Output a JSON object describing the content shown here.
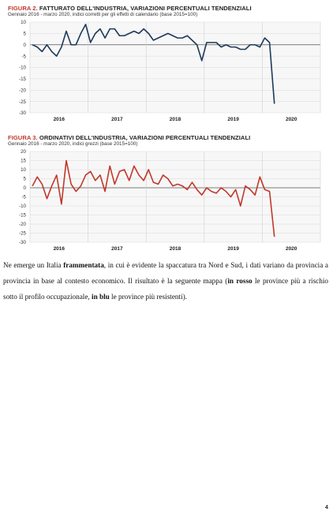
{
  "charts": {
    "c1": {
      "title_num": "FIGURA 2.",
      "title_text": "FATTURATO DELL'INDUSTRIA, VARIAZIONI PERCENTUALI TENDENZIALI",
      "subtitle": "Gennaio 2016 - marzo 2020, indici corretti per gli effetti di calendario (base 2015=100)"
    },
    "c2": {
      "title_num": "FIGURA 3.",
      "title_text": "ORDINATIVI DELL'INDUSTRIA, VARIAZIONI PERCENTUALI TENDENZIALI",
      "subtitle": "Gennaio 2016 - marzo 2020, indici grezzi (base 2015=100)"
    }
  },
  "chart_data": [
    {
      "type": "line",
      "title": "FIGURA 2. FATTURATO DELL'INDUSTRIA, VARIAZIONI PERCENTUALI TENDENZIALI",
      "subtitle": "Gennaio 2016 - marzo 2020, indici corretti per gli effetti di calendario (base 2015=100)",
      "ylim": [
        -30,
        10
      ],
      "yticks": [
        10,
        5,
        0,
        -5,
        -10,
        -15,
        -20,
        -25,
        -30
      ],
      "year_labels": [
        "2016",
        "2017",
        "2018",
        "2019",
        "2020"
      ],
      "grid": true,
      "color": "#1f3a5a",
      "series": [
        {
          "values": [
            0,
            -1,
            -3,
            0,
            -3,
            -5,
            -1,
            6,
            0,
            0,
            5,
            9,
            1,
            5,
            7,
            3,
            7,
            7,
            4,
            4,
            5,
            6,
            5,
            7,
            5,
            2,
            3,
            4,
            5,
            4,
            3,
            3,
            4,
            2,
            0,
            -7,
            1,
            1,
            1,
            -1,
            0,
            -1,
            -1,
            -2,
            -2,
            0,
            0,
            -1,
            3,
            1,
            -26
          ]
        }
      ]
    },
    {
      "type": "line",
      "title": "FIGURA 3. ORDINATIVI DELL'INDUSTRIA, VARIAZIONI PERCENTUALI TENDENZIALI",
      "subtitle": "Gennaio 2016 - marzo 2020, indici grezzi (base 2015=100)",
      "ylim": [
        -30,
        20
      ],
      "yticks": [
        20,
        15,
        10,
        5,
        0,
        -5,
        -10,
        -15,
        -20,
        -25,
        -30
      ],
      "year_labels": [
        "2016",
        "2017",
        "2018",
        "2019",
        "2020"
      ],
      "grid": true,
      "color": "#c0392b",
      "series": [
        {
          "values": [
            1,
            6,
            2,
            -6,
            1,
            7,
            -9,
            15,
            2,
            -2,
            1,
            7,
            9,
            4,
            7,
            -2,
            12,
            2,
            9,
            10,
            4,
            12,
            7,
            4,
            10,
            3,
            2,
            7,
            5,
            1,
            2,
            1,
            -1,
            3,
            -1,
            -4,
            0,
            -2,
            -3,
            0,
            -2,
            -5,
            -1,
            -10,
            1,
            -1,
            -4,
            6,
            -1,
            -2,
            -27
          ]
        }
      ]
    }
  ],
  "body": {
    "p1": "Ne emerge un Italia ",
    "p1b": "frammentata",
    "p2": ", in cui è evidente la spaccatura tra Nord e Sud, i dati variano da provincia a provincia in base al contesto economico. Il risultato è la seguente mappa (",
    "p2b": "in rosso",
    "p3": " le province più a rischio sotto il profilo occupazionale, ",
    "p3b": "in blu",
    "p4": " le province più resistenti)."
  },
  "page_number": "4"
}
